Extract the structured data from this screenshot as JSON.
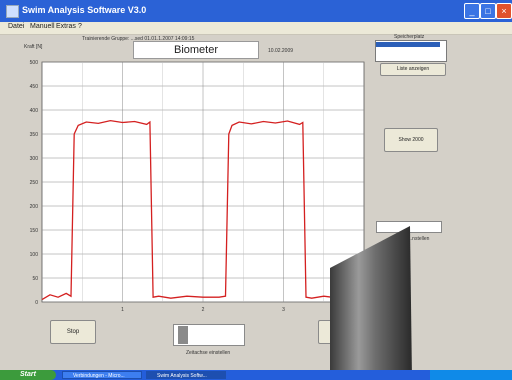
{
  "window": {
    "title": "Swim Analysis Software V3.0"
  },
  "menu": [
    "Datei",
    "Manuell",
    "Extras",
    "?"
  ],
  "header": {
    "file_label": "Trainierende Gruppe:  ...sed 01.01.1.2007 14:09:15",
    "chart_title": "Biometer",
    "date": "10.02.2009"
  },
  "chart_data": {
    "type": "line",
    "ylabel": "Kraft [N]",
    "y_ticks": [
      "0",
      "50",
      "100",
      "150",
      "200",
      "250",
      "300",
      "350",
      "400",
      "450",
      "500"
    ],
    "x_ticks": [
      "1",
      "2",
      "3"
    ],
    "ylim": [
      0,
      500
    ],
    "xlim": [
      0,
      4
    ],
    "grid": true,
    "line_color": "#d42020",
    "series": [
      {
        "x": [
          0,
          0.1,
          0.2,
          0.3,
          0.36,
          0.4,
          0.45,
          0.55,
          0.7,
          0.85,
          1.0,
          1.15,
          1.3,
          1.34,
          1.38,
          1.45,
          1.6,
          1.8,
          2.0,
          2.2,
          2.28,
          2.32,
          2.36,
          2.45,
          2.6,
          2.75,
          2.9,
          3.05,
          3.2,
          3.24,
          3.28,
          3.35,
          3.5,
          3.6
        ],
        "y": [
          5,
          15,
          10,
          18,
          12,
          350,
          368,
          375,
          372,
          378,
          374,
          376,
          370,
          375,
          10,
          12,
          8,
          12,
          10,
          10,
          12,
          350,
          368,
          375,
          371,
          376,
          373,
          377,
          370,
          374,
          10,
          8,
          12,
          10
        ]
      }
    ]
  },
  "right_panel": {
    "list_label": "Speicherplatz",
    "list_button": "Liste anzeigen",
    "show_button": "Show 2000",
    "spinner_label": "...nstellen"
  },
  "bottom": {
    "stop_button": "Stop",
    "slider_label": "Zeitachse einstellen"
  },
  "taskbar": {
    "start": "Start",
    "tasks": [
      "Verbindungen - Micro...",
      "Swim Analysis Softw..."
    ]
  }
}
